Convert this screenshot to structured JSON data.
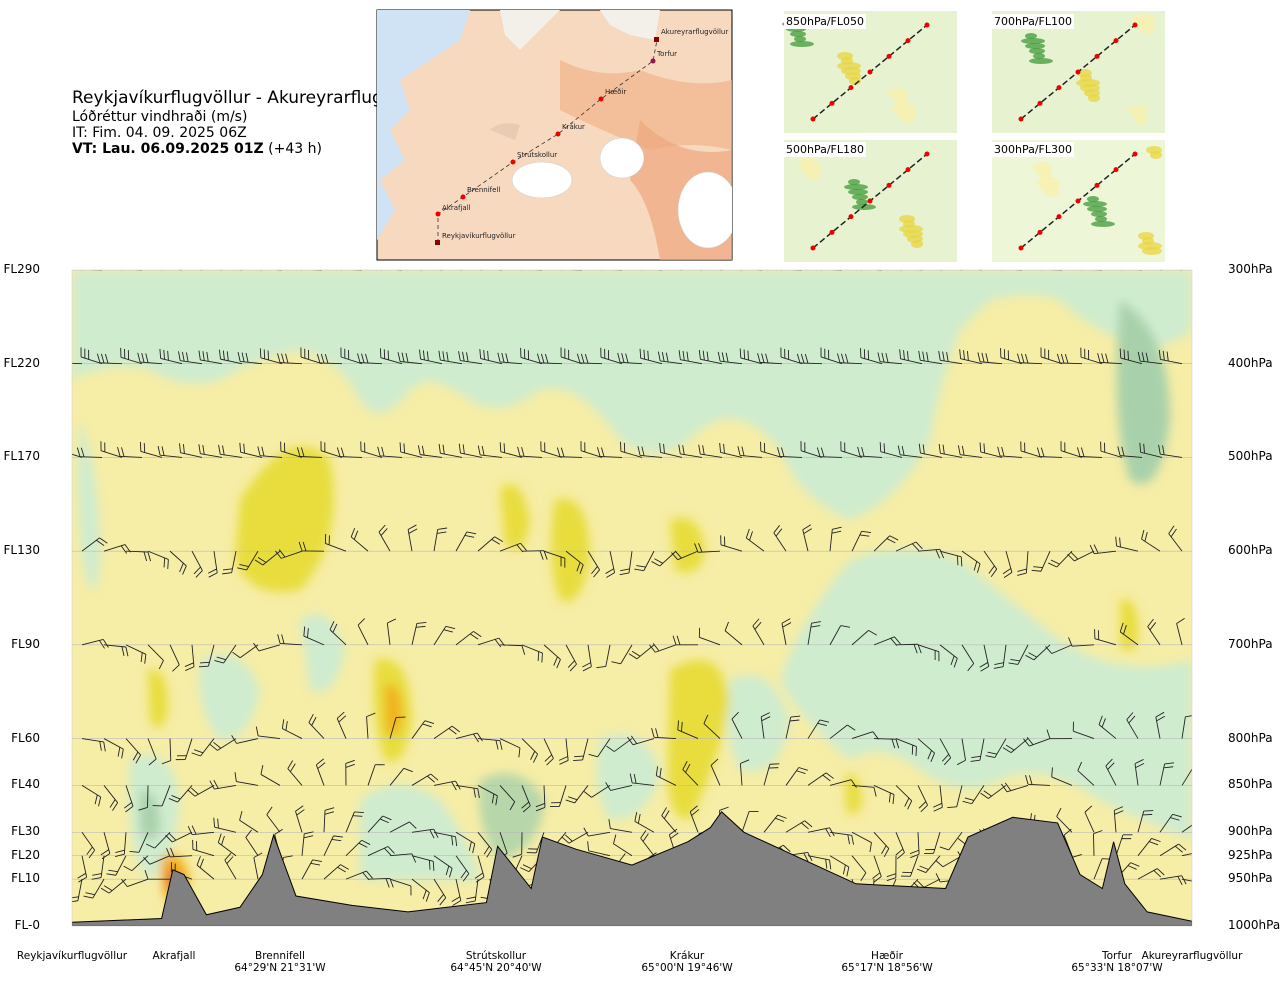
{
  "header": {
    "route": "Reykjavíkurflugvöllur - Akureyrarflugvöllur",
    "parameter": "Lóðréttur vindhraði (m/s)",
    "issue_time": "IT: Fim. 04. 09. 2025 06Z",
    "valid_time_bold": "VT: Lau. 06.09.2025 01Z",
    "valid_time_offset": "(+43 h)"
  },
  "route_map": {
    "waypoints": [
      "Akureyrarflugvöllur",
      "Torfur",
      "Hæðir",
      "Krákur",
      "Strútskollur",
      "Brennifell",
      "Akrafjall",
      "Reykjavíkurflugvöllur"
    ]
  },
  "mini_maps": [
    {
      "title": "850hPa/FL050"
    },
    {
      "title": "700hPa/FL100"
    },
    {
      "title": "500hPa/FL180"
    },
    {
      "title": "300hPa/FL300"
    }
  ],
  "chart_data": {
    "type": "heatmap",
    "title": "Lóðréttur vindhraði (m/s)",
    "x_locations": [
      {
        "name": "Reykjavíkurflugvöllur",
        "coord": ""
      },
      {
        "name": "Akrafjall",
        "coord": ""
      },
      {
        "name": "Brennifell",
        "coord": "64°29'N 21°31'W"
      },
      {
        "name": "Strútskollur",
        "coord": "64°45'N 20°40'W"
      },
      {
        "name": "Krákur",
        "coord": "65°00'N 19°46'W"
      },
      {
        "name": "Hæðir",
        "coord": "65°17'N 18°56'W"
      },
      {
        "name": "Torfur",
        "coord": "65°33'N 18°07'W"
      },
      {
        "name": "Akureyrarflugvöllur",
        "coord": ""
      }
    ],
    "left_axis_flight_levels": [
      "FL290",
      "FL220",
      "FL170",
      "FL130",
      "FL90",
      "FL60",
      "FL40",
      "FL30",
      "FL20",
      "FL10",
      "FL-0"
    ],
    "right_axis_pressure": [
      "300hPa",
      "400hPa",
      "500hPa",
      "600hPa",
      "700hPa",
      "800hPa",
      "850hPa",
      "900hPa",
      "925hPa",
      "950hPa",
      "1000hPa"
    ],
    "pressure_levels_hpa": [
      300,
      400,
      500,
      600,
      700,
      800,
      850,
      900,
      925,
      950,
      1000
    ],
    "colors": {
      "strong_sink": "#a8d1ab",
      "sink": "#cfeccf",
      "weak_sink": "#ecf9ea",
      "neutral": "#fbfce8",
      "weak_lift": "#f6eda6",
      "lift": "#e8dd3c",
      "strong_lift": "#f2b01b",
      "very_strong_lift": "#e8742d",
      "terrain": "#808080"
    },
    "terrain_profile": [
      {
        "x": 0.0,
        "elev_hpa": 996
      },
      {
        "x": 0.08,
        "elev_hpa": 992
      },
      {
        "x": 0.09,
        "elev_hpa": 940
      },
      {
        "x": 0.1,
        "elev_hpa": 945
      },
      {
        "x": 0.12,
        "elev_hpa": 988
      },
      {
        "x": 0.15,
        "elev_hpa": 980
      },
      {
        "x": 0.17,
        "elev_hpa": 945
      },
      {
        "x": 0.18,
        "elev_hpa": 903
      },
      {
        "x": 0.2,
        "elev_hpa": 968
      },
      {
        "x": 0.25,
        "elev_hpa": 978
      },
      {
        "x": 0.3,
        "elev_hpa": 985
      },
      {
        "x": 0.37,
        "elev_hpa": 975
      },
      {
        "x": 0.38,
        "elev_hpa": 915
      },
      {
        "x": 0.41,
        "elev_hpa": 960
      },
      {
        "x": 0.42,
        "elev_hpa": 905
      },
      {
        "x": 0.45,
        "elev_hpa": 918
      },
      {
        "x": 0.5,
        "elev_hpa": 935
      },
      {
        "x": 0.55,
        "elev_hpa": 910
      },
      {
        "x": 0.57,
        "elev_hpa": 895
      },
      {
        "x": 0.58,
        "elev_hpa": 878
      },
      {
        "x": 0.6,
        "elev_hpa": 900
      },
      {
        "x": 0.7,
        "elev_hpa": 955
      },
      {
        "x": 0.78,
        "elev_hpa": 960
      },
      {
        "x": 0.8,
        "elev_hpa": 905
      },
      {
        "x": 0.84,
        "elev_hpa": 884
      },
      {
        "x": 0.88,
        "elev_hpa": 890
      },
      {
        "x": 0.9,
        "elev_hpa": 945
      },
      {
        "x": 0.92,
        "elev_hpa": 960
      },
      {
        "x": 0.93,
        "elev_hpa": 910
      },
      {
        "x": 0.94,
        "elev_hpa": 955
      },
      {
        "x": 0.96,
        "elev_hpa": 985
      },
      {
        "x": 1.0,
        "elev_hpa": 995
      }
    ]
  }
}
